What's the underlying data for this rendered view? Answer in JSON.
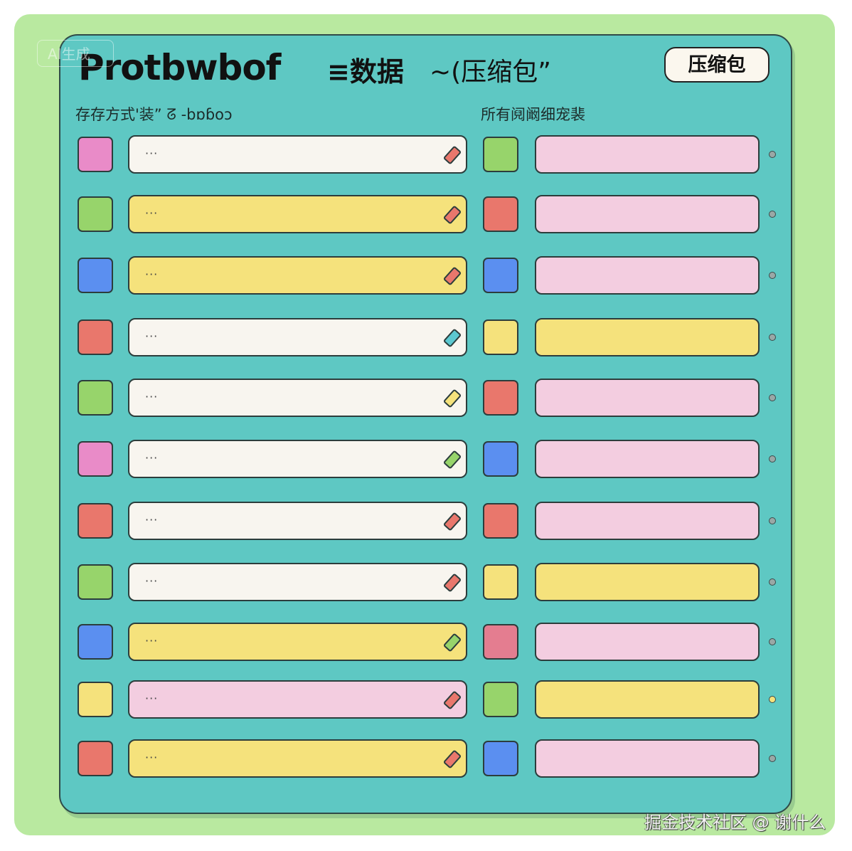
{
  "header": {
    "ai_badge": "AI生成",
    "title": "Protbwbof",
    "title_cn": "≡数据",
    "title_sub": "~(压缩包”",
    "button_label": "压缩包"
  },
  "columns": {
    "left_label": "存存方式'装” ᘔ -bɒɓoɔ",
    "right_label": "所有阋阚细宠裴"
  },
  "row_placeholder": "···",
  "colors": {
    "background": "#b9e9a0",
    "panel": "#5ec8c3",
    "pink": "#e98bc8",
    "green": "#97d46b",
    "blue": "#5b8ff0",
    "red": "#e9776c",
    "yellow": "#f5e27c",
    "white": "#f8f5ef",
    "pink_bar": "#f3cde0",
    "rose": "#e47d90",
    "teal": "#5cc8d0",
    "gray": "#9aa8a6"
  },
  "rows": [
    {
      "left_swatch": "pink",
      "left_bar": "white",
      "eraser": "red",
      "right_swatch": "green",
      "right_bar": "pink_bar",
      "dot": "gray"
    },
    {
      "left_swatch": "green",
      "left_bar": "yellow",
      "eraser": "red",
      "right_swatch": "red",
      "right_bar": "pink_bar",
      "dot": "gray"
    },
    {
      "left_swatch": "blue",
      "left_bar": "yellow",
      "eraser": "red",
      "right_swatch": "blue",
      "right_bar": "pink_bar",
      "dot": "gray"
    },
    {
      "left_swatch": "red",
      "left_bar": "white",
      "eraser": "teal",
      "right_swatch": "yellow",
      "right_bar": "yellow",
      "dot": "gray"
    },
    {
      "left_swatch": "green",
      "left_bar": "white",
      "eraser": "yellow",
      "right_swatch": "red",
      "right_bar": "pink_bar",
      "dot": "gray"
    },
    {
      "left_swatch": "pink",
      "left_bar": "white",
      "eraser": "green",
      "right_swatch": "blue",
      "right_bar": "pink_bar",
      "dot": "gray"
    },
    {
      "left_swatch": "red",
      "left_bar": "white",
      "eraser": "red",
      "right_swatch": "red",
      "right_bar": "pink_bar",
      "dot": "gray"
    },
    {
      "left_swatch": "green",
      "left_bar": "white",
      "eraser": "red",
      "right_swatch": "yellow",
      "right_bar": "yellow",
      "dot": "gray"
    },
    {
      "left_swatch": "blue",
      "left_bar": "yellow",
      "eraser": "green",
      "right_swatch": "rose",
      "right_bar": "pink_bar",
      "dot": "gray"
    },
    {
      "left_swatch": "yellow",
      "left_bar": "pink_bar",
      "eraser": "red",
      "right_swatch": "green",
      "right_bar": "yellow",
      "dot": "yellow"
    },
    {
      "left_swatch": "red",
      "left_bar": "yellow",
      "eraser": "red",
      "right_swatch": "blue",
      "right_bar": "pink_bar",
      "dot": "gray"
    }
  ],
  "watermark": "掘金技术社区 @ 谢什么"
}
